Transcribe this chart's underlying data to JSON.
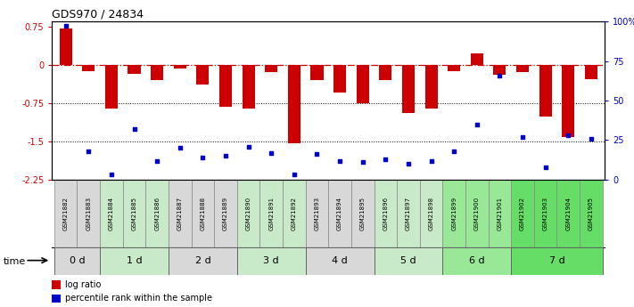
{
  "title": "GDS970 / 24834",
  "samples": [
    "GSM21882",
    "GSM21883",
    "GSM21884",
    "GSM21885",
    "GSM21886",
    "GSM21887",
    "GSM21888",
    "GSM21889",
    "GSM21890",
    "GSM21891",
    "GSM21892",
    "GSM21893",
    "GSM21894",
    "GSM21895",
    "GSM21896",
    "GSM21897",
    "GSM21898",
    "GSM21899",
    "GSM21900",
    "GSM21901",
    "GSM21902",
    "GSM21903",
    "GSM21904",
    "GSM21905"
  ],
  "log_ratio": [
    0.72,
    -0.13,
    -0.85,
    -0.18,
    -0.3,
    -0.07,
    -0.38,
    -0.83,
    -0.85,
    -0.15,
    -1.53,
    -0.3,
    -0.55,
    -0.75,
    -0.3,
    -0.95,
    -0.85,
    -0.12,
    0.22,
    -0.2,
    -0.15,
    -1.02,
    -1.42,
    -0.28
  ],
  "percentile": [
    97,
    18,
    3,
    32,
    12,
    20,
    14,
    15,
    21,
    17,
    3,
    16,
    12,
    11,
    13,
    10,
    12,
    18,
    35,
    66,
    27,
    8,
    28,
    26
  ],
  "groups": [
    {
      "label": "0 d",
      "start": 0,
      "end": 2,
      "color": "#d8d8d8"
    },
    {
      "label": "1 d",
      "start": 2,
      "end": 5,
      "color": "#c8eac8"
    },
    {
      "label": "2 d",
      "start": 5,
      "end": 8,
      "color": "#d8d8d8"
    },
    {
      "label": "3 d",
      "start": 8,
      "end": 11,
      "color": "#c8eac8"
    },
    {
      "label": "4 d",
      "start": 11,
      "end": 14,
      "color": "#d8d8d8"
    },
    {
      "label": "5 d",
      "start": 14,
      "end": 17,
      "color": "#c8eac8"
    },
    {
      "label": "6 d",
      "start": 17,
      "end": 20,
      "color": "#98e898"
    },
    {
      "label": "7 d",
      "start": 20,
      "end": 24,
      "color": "#66dd66"
    }
  ],
  "bar_color": "#cc0000",
  "dot_color": "#0000cc",
  "ylim_left": [
    -2.25,
    0.85
  ],
  "ylim_right": [
    0,
    100
  ],
  "yticks_left": [
    0.75,
    0.0,
    -0.75,
    -1.5,
    -2.25
  ],
  "yticks_right": [
    0,
    25,
    50,
    75,
    100
  ],
  "ytick_right_labels": [
    "0",
    "25",
    "50",
    "75",
    "100%"
  ],
  "legend_log_ratio": "log ratio",
  "legend_percentile": "percentile rank within the sample",
  "time_label": "time",
  "background_color": "#ffffff"
}
